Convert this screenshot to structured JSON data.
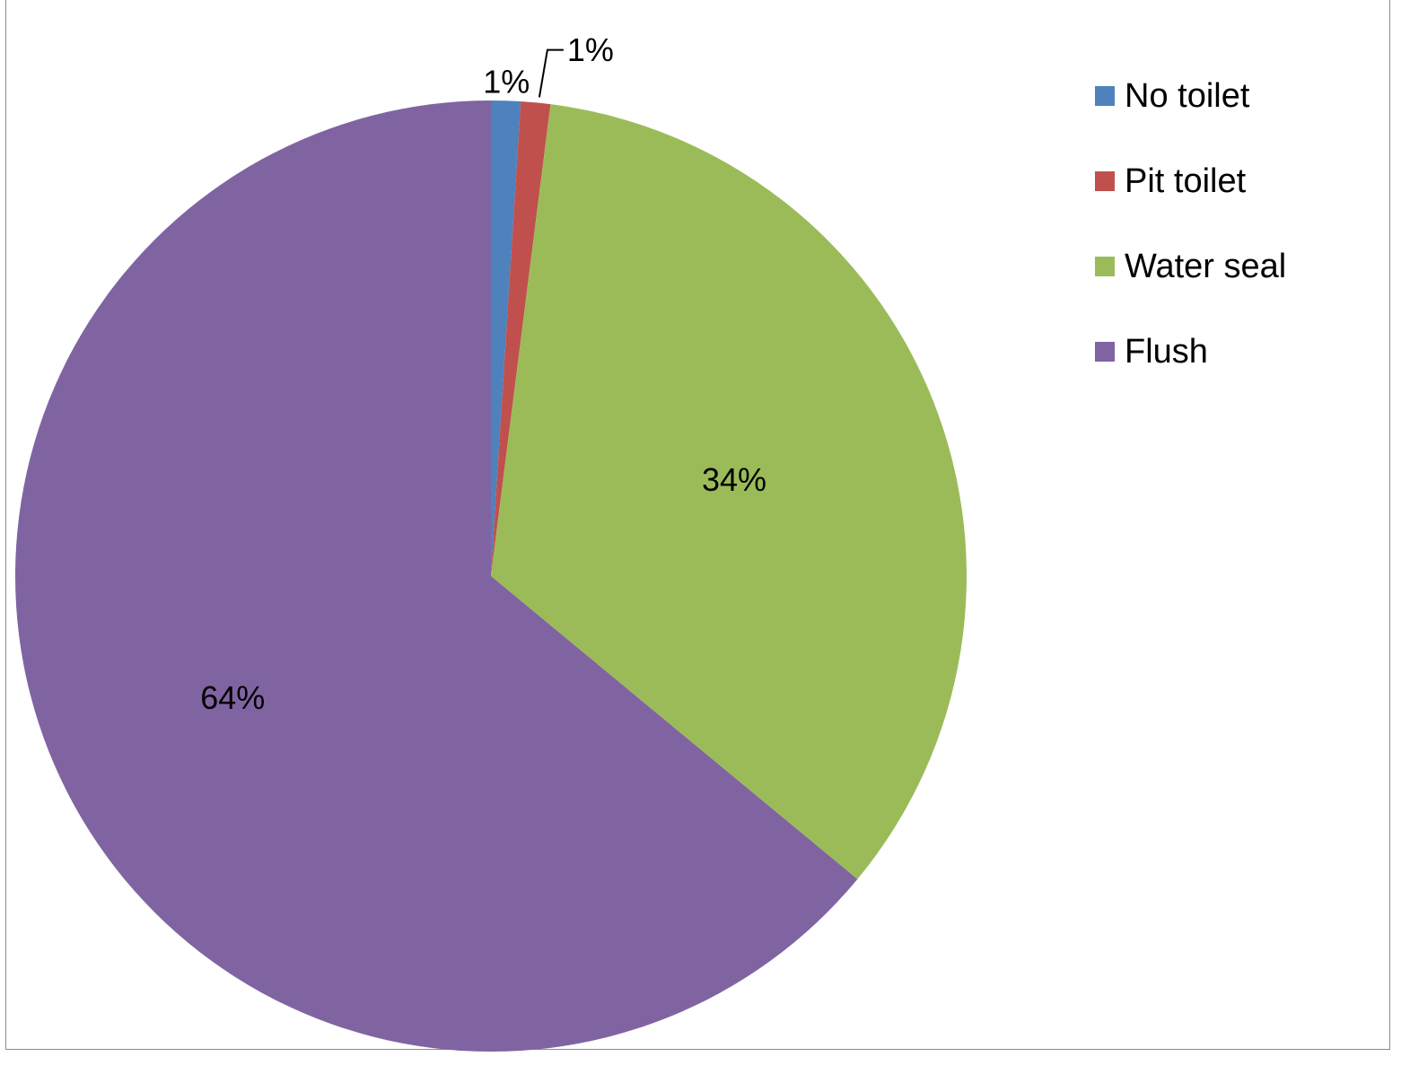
{
  "chart_data": {
    "type": "pie",
    "categories": [
      "No toilet",
      "Pit toilet",
      "Water seal",
      "Flush"
    ],
    "values": [
      1,
      1,
      34,
      64
    ],
    "labels": [
      "1%",
      "1%",
      "34%",
      "64%"
    ],
    "colors": [
      "#4f81bd",
      "#c0504d",
      "#9bbb59",
      "#8064a2"
    ],
    "legend_position": "top-right",
    "start_angle": "12 o'clock",
    "direction": "clockwise"
  }
}
